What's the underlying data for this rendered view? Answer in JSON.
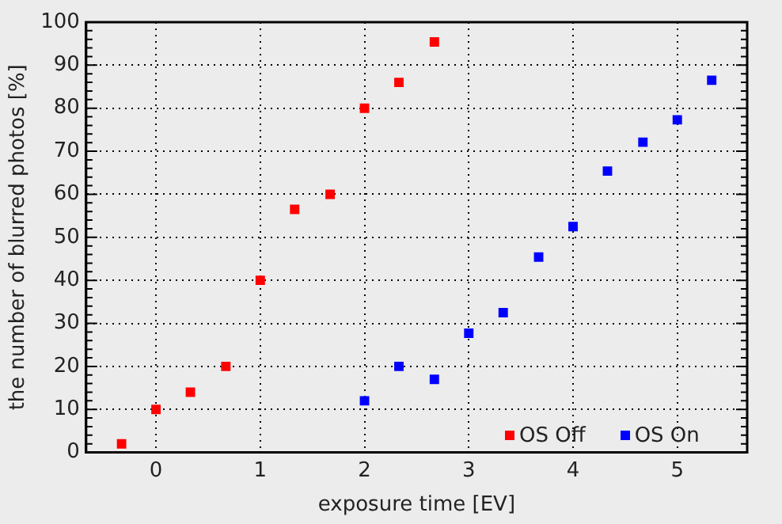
{
  "chart_data": {
    "type": "scatter",
    "xlabel": "exposure time [EV]",
    "ylabel": "the number of blurred photos [%]",
    "series": [
      {
        "name": "OS Off",
        "color": "#ff0000",
        "x": [
          -0.33,
          0,
          0.33,
          0.67,
          1,
          1.33,
          1.67,
          2,
          2.33,
          2.67
        ],
        "values": [
          2,
          10,
          14,
          20,
          40,
          56.5,
          60,
          80,
          86,
          95.4
        ]
      },
      {
        "name": "OS On",
        "color": "#0000ff",
        "x": [
          2,
          2.33,
          2.67,
          3,
          3.33,
          3.67,
          4,
          4.33,
          4.67,
          5,
          5.33
        ],
        "values": [
          12,
          20,
          17,
          27.7,
          32.5,
          45.4,
          52.5,
          65.4,
          72.1,
          77.3,
          86.5
        ]
      }
    ],
    "xlim": [
      -0.67,
      5.67
    ],
    "xticks": [
      0,
      1,
      2,
      3,
      4,
      5
    ],
    "ylim": [
      0,
      100
    ],
    "yticks": [
      0,
      10,
      20,
      30,
      40,
      50,
      60,
      70,
      80,
      90,
      100
    ],
    "grid": true,
    "legend": "bottom right",
    "marker": "square"
  }
}
